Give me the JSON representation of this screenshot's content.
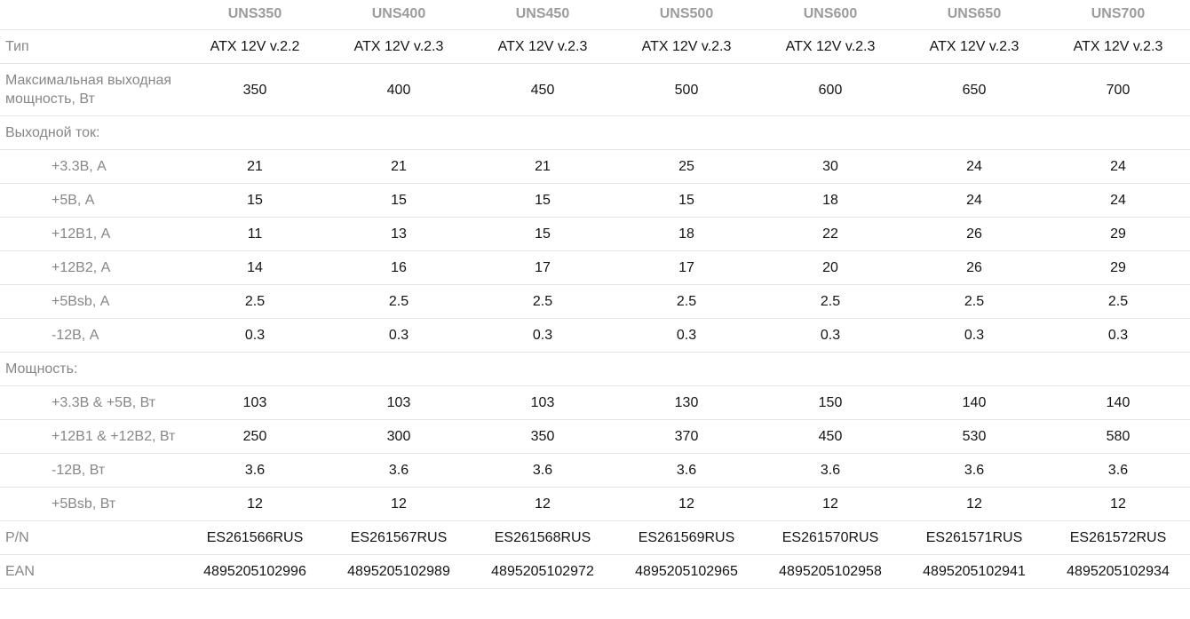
{
  "table": {
    "models": [
      "UNS350",
      "UNS400",
      "UNS450",
      "UNS500",
      "UNS600",
      "UNS650",
      "UNS700"
    ],
    "rows": [
      {
        "type": "data",
        "indent": false,
        "label": "Тип",
        "values": [
          "ATX 12V v.2.2",
          "ATX 12V v.2.3",
          "ATX 12V v.2.3",
          "ATX 12V v.2.3",
          "ATX 12V v.2.3",
          "ATX 12V v.2.3",
          "ATX 12V v.2.3"
        ]
      },
      {
        "type": "data",
        "indent": false,
        "label": "Максимальная выходная мощность, Вт",
        "values": [
          "350",
          "400",
          "450",
          "500",
          "600",
          "650",
          "700"
        ]
      },
      {
        "type": "section",
        "label": "Выходной ток:"
      },
      {
        "type": "data",
        "indent": true,
        "label": "+3.3В, А",
        "values": [
          "21",
          "21",
          "21",
          "25",
          "30",
          "24",
          "24"
        ]
      },
      {
        "type": "data",
        "indent": true,
        "label": "+5В, А",
        "values": [
          "15",
          "15",
          "15",
          "15",
          "18",
          "24",
          "24"
        ]
      },
      {
        "type": "data",
        "indent": true,
        "label": "+12В1, А",
        "values": [
          "11",
          "13",
          "15",
          "18",
          "22",
          "26",
          "29"
        ]
      },
      {
        "type": "data",
        "indent": true,
        "label": "+12В2, А",
        "values": [
          "14",
          "16",
          "17",
          "17",
          "20",
          "26",
          "29"
        ]
      },
      {
        "type": "data",
        "indent": true,
        "label": "+5Bsb, А",
        "values": [
          "2.5",
          "2.5",
          "2.5",
          "2.5",
          "2.5",
          "2.5",
          "2.5"
        ]
      },
      {
        "type": "data",
        "indent": true,
        "label": "-12В, А",
        "values": [
          "0.3",
          "0.3",
          "0.3",
          "0.3",
          "0.3",
          "0.3",
          "0.3"
        ]
      },
      {
        "type": "section",
        "label": "Мощность:"
      },
      {
        "type": "data",
        "indent": true,
        "label": "+3.3В & +5В, Вт",
        "values": [
          "103",
          "103",
          "103",
          "130",
          "150",
          "140",
          "140"
        ]
      },
      {
        "type": "data",
        "indent": true,
        "label": "+12В1 & +12В2, Вт",
        "values": [
          "250",
          "300",
          "350",
          "370",
          "450",
          "530",
          "580"
        ]
      },
      {
        "type": "data",
        "indent": true,
        "label": "-12В, Вт",
        "values": [
          "3.6",
          "3.6",
          "3.6",
          "3.6",
          "3.6",
          "3.6",
          "3.6"
        ]
      },
      {
        "type": "data",
        "indent": true,
        "label": "+5Bsb, Вт",
        "values": [
          "12",
          "12",
          "12",
          "12",
          "12",
          "12",
          "12"
        ]
      },
      {
        "type": "data",
        "indent": false,
        "label": "P/N",
        "values": [
          "ES261566RUS",
          "ES261567RUS",
          "ES261568RUS",
          "ES261569RUS",
          "ES261570RUS",
          "ES261571RUS",
          "ES261572RUS"
        ]
      },
      {
        "type": "data",
        "indent": false,
        "label": "EAN",
        "values": [
          "4895205102996",
          "4895205102989",
          "4895205102972",
          "4895205102965",
          "4895205102958",
          "4895205102941",
          "4895205102934"
        ]
      }
    ],
    "colors": {
      "label_text": "#878787",
      "header_text": "#9c9c9c",
      "value_text": "#141414",
      "row_border": "#e4e4e4"
    }
  }
}
